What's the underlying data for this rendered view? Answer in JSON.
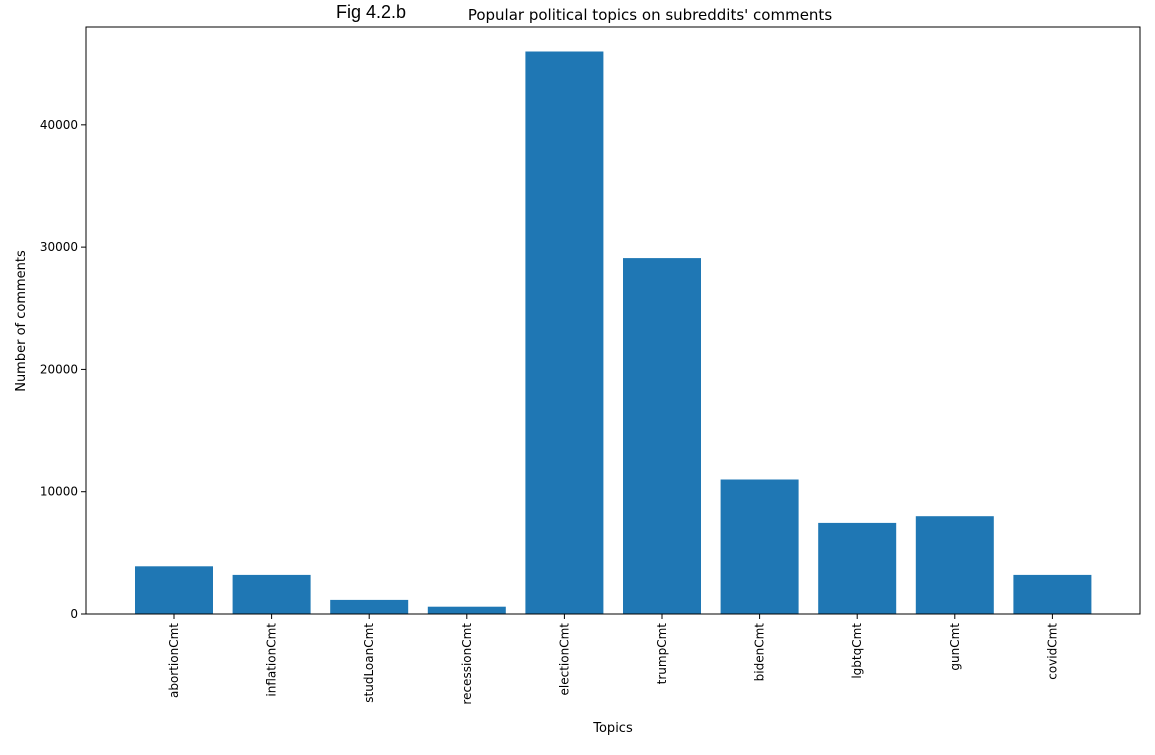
{
  "figure_label": "Fig 4.2.b",
  "chart_data": {
    "type": "bar",
    "title": "Popular political topics on subreddits' comments",
    "xlabel": "Topics",
    "ylabel": "Number of comments",
    "categories": [
      "abortionCmt",
      "inflationCmt",
      "studLoanCmt",
      "recessionCmt",
      "electionCmt",
      "trumpCmt",
      "bidenCmt",
      "lgbtqCmt",
      "gunCmt",
      "covidCmt"
    ],
    "values": [
      3900,
      3200,
      1150,
      600,
      46000,
      29100,
      11000,
      7450,
      8000,
      3200
    ],
    "ylim": [
      0,
      48000
    ],
    "yticks": [
      0,
      10000,
      20000,
      30000,
      40000
    ],
    "ytick_labels": [
      "0",
      "10000",
      "20000",
      "30000",
      "40000"
    ],
    "bar_color": "#1f77b4",
    "grid": false,
    "legend": "none"
  }
}
